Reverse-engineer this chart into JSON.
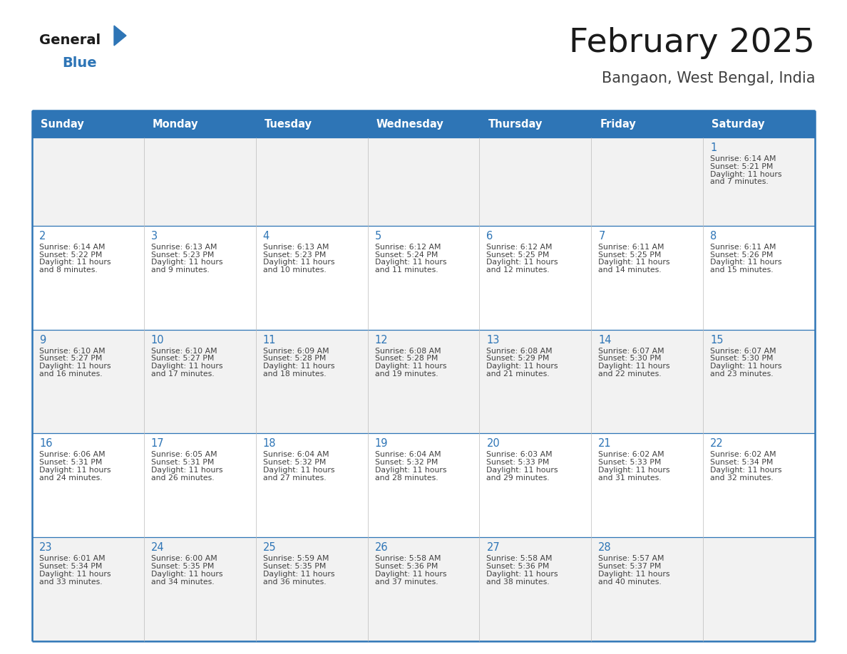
{
  "title": "February 2025",
  "subtitle": "Bangaon, West Bengal, India",
  "header_bg": "#2E75B6",
  "header_text_color": "#FFFFFF",
  "cell_bg_even": "#F2F2F2",
  "cell_bg_odd": "#FFFFFF",
  "border_color": "#2E75B6",
  "day_headers": [
    "Sunday",
    "Monday",
    "Tuesday",
    "Wednesday",
    "Thursday",
    "Friday",
    "Saturday"
  ],
  "title_color": "#1a1a1a",
  "subtitle_color": "#404040",
  "day_num_color": "#2E75B6",
  "info_color": "#404040",
  "logo_general_color": "#1a1a1a",
  "logo_blue_color": "#2E75B6",
  "logo_triangle_color": "#2E75B6",
  "calendar_data": [
    [
      null,
      null,
      null,
      null,
      null,
      null,
      {
        "day": "1",
        "sunrise": "6:14 AM",
        "sunset": "5:21 PM",
        "daylight_hours": 11,
        "daylight_minutes": 7
      }
    ],
    [
      {
        "day": "2",
        "sunrise": "6:14 AM",
        "sunset": "5:22 PM",
        "daylight_hours": 11,
        "daylight_minutes": 8
      },
      {
        "day": "3",
        "sunrise": "6:13 AM",
        "sunset": "5:23 PM",
        "daylight_hours": 11,
        "daylight_minutes": 9
      },
      {
        "day": "4",
        "sunrise": "6:13 AM",
        "sunset": "5:23 PM",
        "daylight_hours": 11,
        "daylight_minutes": 10
      },
      {
        "day": "5",
        "sunrise": "6:12 AM",
        "sunset": "5:24 PM",
        "daylight_hours": 11,
        "daylight_minutes": 11
      },
      {
        "day": "6",
        "sunrise": "6:12 AM",
        "sunset": "5:25 PM",
        "daylight_hours": 11,
        "daylight_minutes": 12
      },
      {
        "day": "7",
        "sunrise": "6:11 AM",
        "sunset": "5:25 PM",
        "daylight_hours": 11,
        "daylight_minutes": 14
      },
      {
        "day": "8",
        "sunrise": "6:11 AM",
        "sunset": "5:26 PM",
        "daylight_hours": 11,
        "daylight_minutes": 15
      }
    ],
    [
      {
        "day": "9",
        "sunrise": "6:10 AM",
        "sunset": "5:27 PM",
        "daylight_hours": 11,
        "daylight_minutes": 16
      },
      {
        "day": "10",
        "sunrise": "6:10 AM",
        "sunset": "5:27 PM",
        "daylight_hours": 11,
        "daylight_minutes": 17
      },
      {
        "day": "11",
        "sunrise": "6:09 AM",
        "sunset": "5:28 PM",
        "daylight_hours": 11,
        "daylight_minutes": 18
      },
      {
        "day": "12",
        "sunrise": "6:08 AM",
        "sunset": "5:28 PM",
        "daylight_hours": 11,
        "daylight_minutes": 19
      },
      {
        "day": "13",
        "sunrise": "6:08 AM",
        "sunset": "5:29 PM",
        "daylight_hours": 11,
        "daylight_minutes": 21
      },
      {
        "day": "14",
        "sunrise": "6:07 AM",
        "sunset": "5:30 PM",
        "daylight_hours": 11,
        "daylight_minutes": 22
      },
      {
        "day": "15",
        "sunrise": "6:07 AM",
        "sunset": "5:30 PM",
        "daylight_hours": 11,
        "daylight_minutes": 23
      }
    ],
    [
      {
        "day": "16",
        "sunrise": "6:06 AM",
        "sunset": "5:31 PM",
        "daylight_hours": 11,
        "daylight_minutes": 24
      },
      {
        "day": "17",
        "sunrise": "6:05 AM",
        "sunset": "5:31 PM",
        "daylight_hours": 11,
        "daylight_minutes": 26
      },
      {
        "day": "18",
        "sunrise": "6:04 AM",
        "sunset": "5:32 PM",
        "daylight_hours": 11,
        "daylight_minutes": 27
      },
      {
        "day": "19",
        "sunrise": "6:04 AM",
        "sunset": "5:32 PM",
        "daylight_hours": 11,
        "daylight_minutes": 28
      },
      {
        "day": "20",
        "sunrise": "6:03 AM",
        "sunset": "5:33 PM",
        "daylight_hours": 11,
        "daylight_minutes": 29
      },
      {
        "day": "21",
        "sunrise": "6:02 AM",
        "sunset": "5:33 PM",
        "daylight_hours": 11,
        "daylight_minutes": 31
      },
      {
        "day": "22",
        "sunrise": "6:02 AM",
        "sunset": "5:34 PM",
        "daylight_hours": 11,
        "daylight_minutes": 32
      }
    ],
    [
      {
        "day": "23",
        "sunrise": "6:01 AM",
        "sunset": "5:34 PM",
        "daylight_hours": 11,
        "daylight_minutes": 33
      },
      {
        "day": "24",
        "sunrise": "6:00 AM",
        "sunset": "5:35 PM",
        "daylight_hours": 11,
        "daylight_minutes": 34
      },
      {
        "day": "25",
        "sunrise": "5:59 AM",
        "sunset": "5:35 PM",
        "daylight_hours": 11,
        "daylight_minutes": 36
      },
      {
        "day": "26",
        "sunrise": "5:58 AM",
        "sunset": "5:36 PM",
        "daylight_hours": 11,
        "daylight_minutes": 37
      },
      {
        "day": "27",
        "sunrise": "5:58 AM",
        "sunset": "5:36 PM",
        "daylight_hours": 11,
        "daylight_minutes": 38
      },
      {
        "day": "28",
        "sunrise": "5:57 AM",
        "sunset": "5:37 PM",
        "daylight_hours": 11,
        "daylight_minutes": 40
      },
      null
    ]
  ],
  "fig_width": 11.88,
  "fig_height": 9.18,
  "dpi": 100
}
